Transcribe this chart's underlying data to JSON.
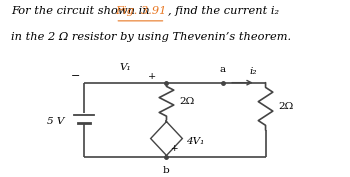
{
  "title_line1": "For the circuit shown in ",
  "title_fig": "Fig. 3.91",
  "title_line1b": ", find the current i₂",
  "title_line2": "in the 2 Ω resistor by using Thevenin’s theorem.",
  "fig_color": "#e87722",
  "text_color": "#000000",
  "bg_color": "#ffffff",
  "circuit": {
    "v1_label": "V₁",
    "r1_label": "2Ω",
    "r2_label": "2Ω",
    "dep_label": "4V₁",
    "i2_label": "i₂",
    "vsource_label": "5 V",
    "a_label": "a",
    "b_label": "b",
    "minus_sign": "−"
  }
}
